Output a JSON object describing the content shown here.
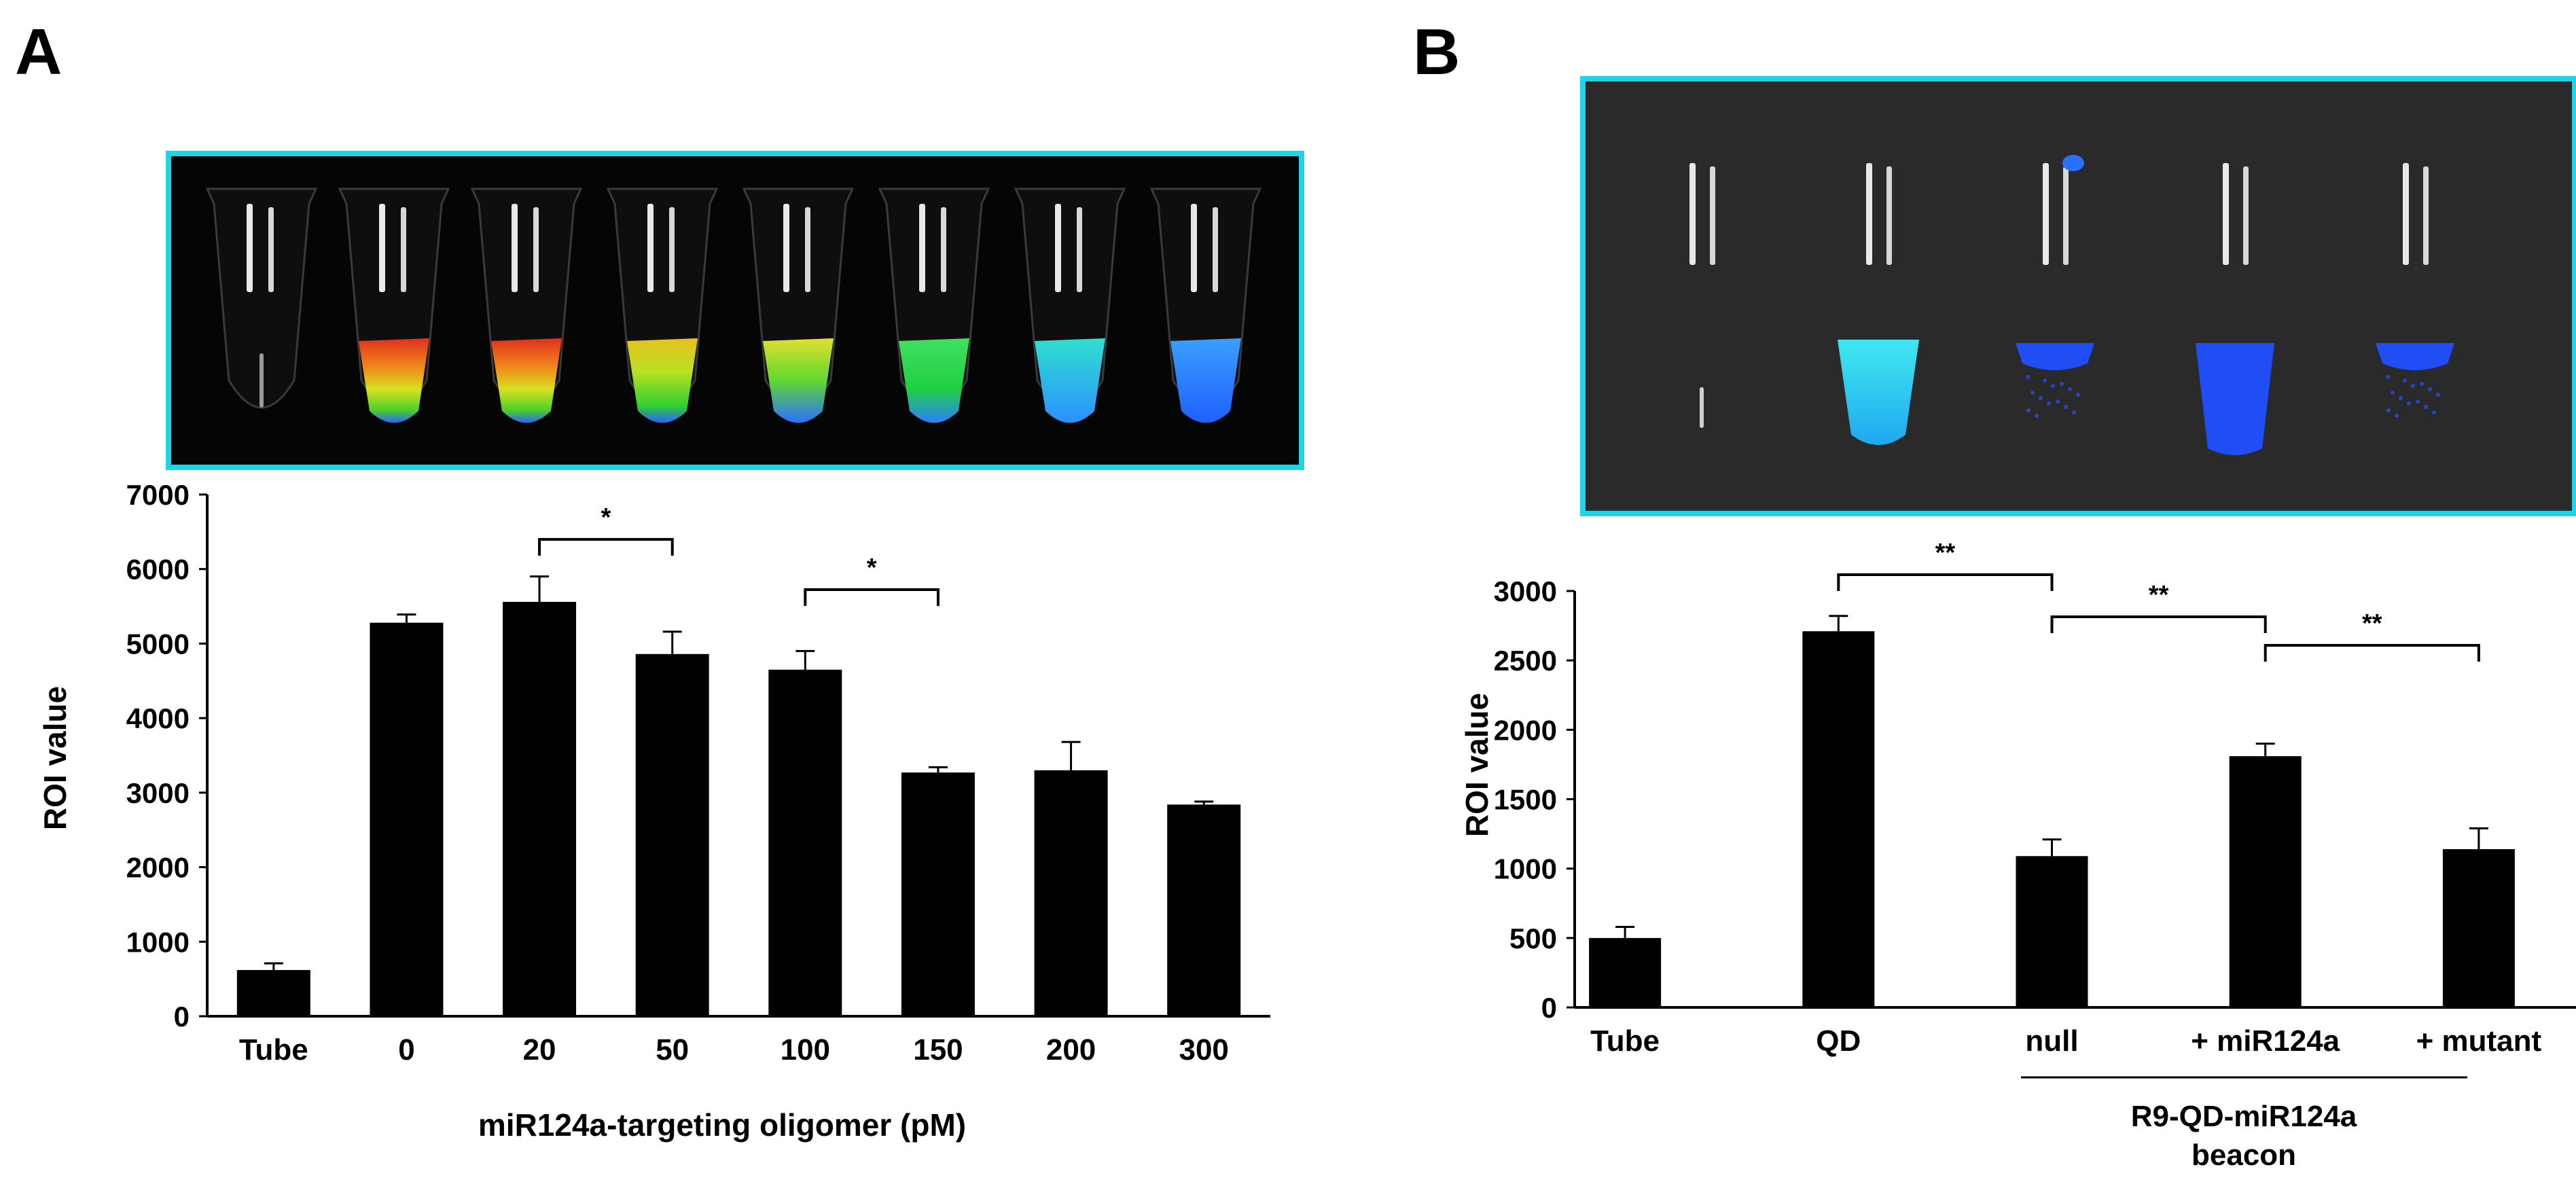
{
  "panels": {
    "a_label": "A",
    "b_label": "B"
  },
  "colors": {
    "photo_border": "#22d3e6",
    "photo_bg_a": "#050505",
    "photo_bg_b": "#2a2a2a",
    "bar": "#000000"
  },
  "chart_data": [
    {
      "type": "bar",
      "panel": "A",
      "categories": [
        "Tube",
        "0",
        "20",
        "50",
        "100",
        "150",
        "200",
        "300"
      ],
      "values": [
        620,
        5280,
        5560,
        4860,
        4650,
        3270,
        3300,
        2840
      ],
      "errors": [
        90,
        110,
        340,
        300,
        250,
        70,
        380,
        40
      ],
      "xlabel": "miR124a-targeting oligomer (pM)",
      "ylabel": "ROI value",
      "ylim": [
        0,
        7000
      ],
      "yticks": [
        "0",
        "1000",
        "2000",
        "3000",
        "4000",
        "5000",
        "6000",
        "7000"
      ],
      "grid": false,
      "significance": [
        {
          "from": "20",
          "to": "50",
          "label": "*"
        },
        {
          "from": "100",
          "to": "150",
          "label": "*"
        }
      ],
      "tube_photo": {
        "tubes": 8,
        "signal_colors": [
          "none",
          "hot",
          "hot",
          "hot-green",
          "green-yellow",
          "green",
          "cyan",
          "blue"
        ]
      }
    },
    {
      "type": "bar",
      "panel": "B",
      "categories": [
        "Tube",
        "QD",
        "null",
        "+ miR124a",
        "+ mutant"
      ],
      "values": [
        500,
        2710,
        1090,
        1810,
        1140
      ],
      "errors": [
        80,
        110,
        120,
        90,
        150
      ],
      "xlabel": "",
      "ylabel": "ROI value",
      "ylim": [
        0,
        3000
      ],
      "yticks": [
        "0",
        "500",
        "1000",
        "1500",
        "2000",
        "2500",
        "3000"
      ],
      "grid": false,
      "group_label": [
        "R9-QD-miR124a",
        "beacon"
      ],
      "significance": [
        {
          "from": "QD",
          "to": "null",
          "label": "**"
        },
        {
          "from": "null",
          "to": "+ miR124a",
          "label": "**"
        },
        {
          "from": "+ miR124a",
          "to": "+ mutant",
          "label": "**"
        }
      ],
      "tube_photo": {
        "tubes": 5,
        "signal_colors": [
          "none",
          "cyan",
          "blue",
          "blue",
          "blue"
        ]
      }
    }
  ]
}
